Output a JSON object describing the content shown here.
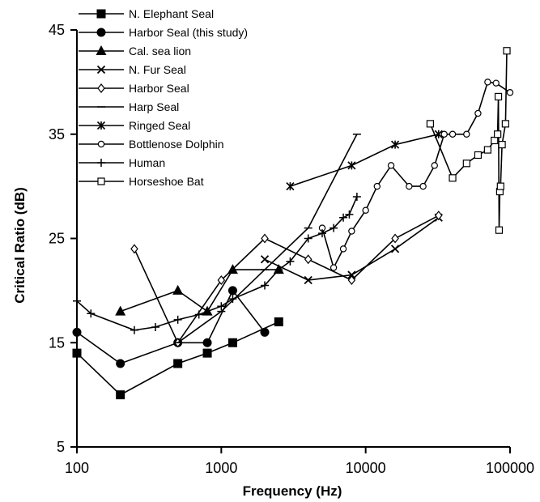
{
  "chart_data": {
    "type": "scatter",
    "title": "",
    "xlabel": "Frequency (Hz)",
    "ylabel": "Critical Ratio (dB)",
    "x_scale": "log",
    "xlim": [
      100,
      100000
    ],
    "ylim": [
      5,
      45
    ],
    "x_ticks": [
      100,
      1000,
      10000,
      100000
    ],
    "x_tick_labels": [
      "100",
      "1000",
      "10000",
      "100000"
    ],
    "y_ticks": [
      5,
      15,
      25,
      35,
      45
    ],
    "y_tick_labels": [
      "5",
      "15",
      "25",
      "35",
      "45"
    ],
    "grid": false,
    "legend_position": "top-left",
    "series": [
      {
        "name": "N. Elephant Seal",
        "marker": "square-filled",
        "x": [
          100,
          200,
          500,
          800,
          1200,
          2500
        ],
        "y": [
          14,
          10,
          13,
          14,
          15,
          17
        ]
      },
      {
        "name": "Harbor Seal (this study)",
        "marker": "circle-filled",
        "x": [
          100,
          200,
          500,
          800,
          1200,
          2000
        ],
        "y": [
          16,
          13,
          15,
          15,
          20,
          16
        ]
      },
      {
        "name": "Cal. sea lion",
        "marker": "triangle-filled",
        "x": [
          200,
          500,
          800,
          1200,
          2500
        ],
        "y": [
          18,
          20,
          18,
          22,
          22
        ]
      },
      {
        "name": "N. Fur Seal",
        "marker": "x",
        "x": [
          2000,
          4000,
          8000,
          16000,
          32000
        ],
        "y": [
          23,
          21,
          21.5,
          24,
          27
        ]
      },
      {
        "name": "Harbor Seal",
        "marker": "diamond-open",
        "x": [
          250,
          500,
          1000,
          2000,
          4000,
          8000,
          16000,
          32000
        ],
        "y": [
          24,
          15,
          21,
          25,
          23,
          21,
          25,
          27.2
        ]
      },
      {
        "name": "Harp Seal",
        "marker": "dash",
        "x": [
          500,
          1000,
          2000,
          4000,
          8700
        ],
        "y": [
          15,
          18,
          22,
          26,
          35
        ]
      },
      {
        "name": "Ringed Seal",
        "marker": "asterisk",
        "x": [
          3000,
          8000,
          16000,
          32000
        ],
        "y": [
          30,
          32,
          34,
          35
        ]
      },
      {
        "name": "Bottlenose Dolphin",
        "marker": "circle-open",
        "x": [
          5000,
          6000,
          7000,
          8000,
          10000,
          12000,
          15000,
          20000,
          25000,
          30000,
          35000,
          40000,
          50000,
          60000,
          70000,
          80000,
          100000
        ],
        "y": [
          26,
          22.2,
          24,
          25.7,
          27.7,
          30,
          32,
          30,
          30,
          32,
          35,
          35,
          35,
          37,
          40,
          39.9,
          39
        ]
      },
      {
        "name": "Human",
        "marker": "plus",
        "x": [
          100,
          125,
          250,
          350,
          500,
          700,
          1000,
          1200,
          2000,
          2500,
          3000,
          4000,
          5000,
          6000,
          7000,
          7700,
          8700
        ],
        "y": [
          19,
          17.8,
          16.2,
          16.5,
          17.2,
          17.7,
          18.5,
          19.2,
          20.5,
          22,
          22.8,
          25,
          25.5,
          26,
          27,
          27.3,
          29
        ]
      },
      {
        "name": "Horseshoe Bat",
        "marker": "square-open",
        "x": [
          28000,
          40000,
          50000,
          60000,
          70000,
          78000,
          82000,
          83000,
          84000,
          85000,
          86000,
          88000,
          93000,
          95000
        ],
        "y": [
          36,
          30.8,
          32.2,
          33,
          33.5,
          34.4,
          35,
          38.6,
          25.8,
          29.5,
          30,
          34,
          36,
          43
        ]
      }
    ]
  }
}
